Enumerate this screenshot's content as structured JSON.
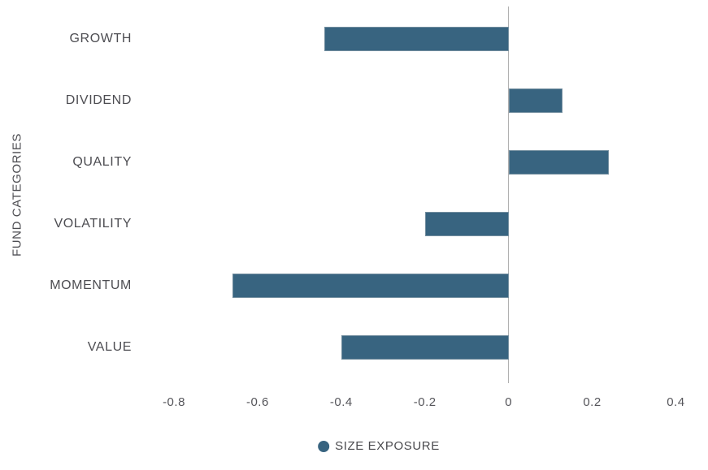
{
  "chart_data": {
    "type": "bar",
    "orientation": "horizontal",
    "title": "",
    "xlabel": "",
    "ylabel": "FUND CATEGORIES",
    "categories": [
      "GROWTH",
      "DIVIDEND",
      "QUALITY",
      "VOLATILITY",
      "MOMENTUM",
      "VALUE"
    ],
    "series": [
      {
        "name": "SIZE EXPOSURE",
        "values": [
          -0.44,
          0.13,
          0.24,
          -0.2,
          -0.66,
          -0.4
        ]
      }
    ],
    "xlim": [
      -0.87,
      0.44
    ],
    "xticks": [
      -0.8,
      -0.6,
      -0.4,
      -0.2,
      0,
      0.2,
      0.4
    ],
    "xtick_labels": [
      "-0.8",
      "-0.6",
      "-0.4",
      "-0.2",
      "0",
      "0.2",
      "0.4"
    ],
    "grid": false,
    "zero_line": true,
    "legend_position": "bottom-center",
    "colors": {
      "bar": "#386480",
      "zero_line": "#b0b0b0",
      "label_text": "#4d4d52",
      "tick_text": "#55555a",
      "background": "#ffffff"
    }
  },
  "legend": {
    "marker": "circle-icon",
    "label": "SIZE EXPOSURE"
  }
}
